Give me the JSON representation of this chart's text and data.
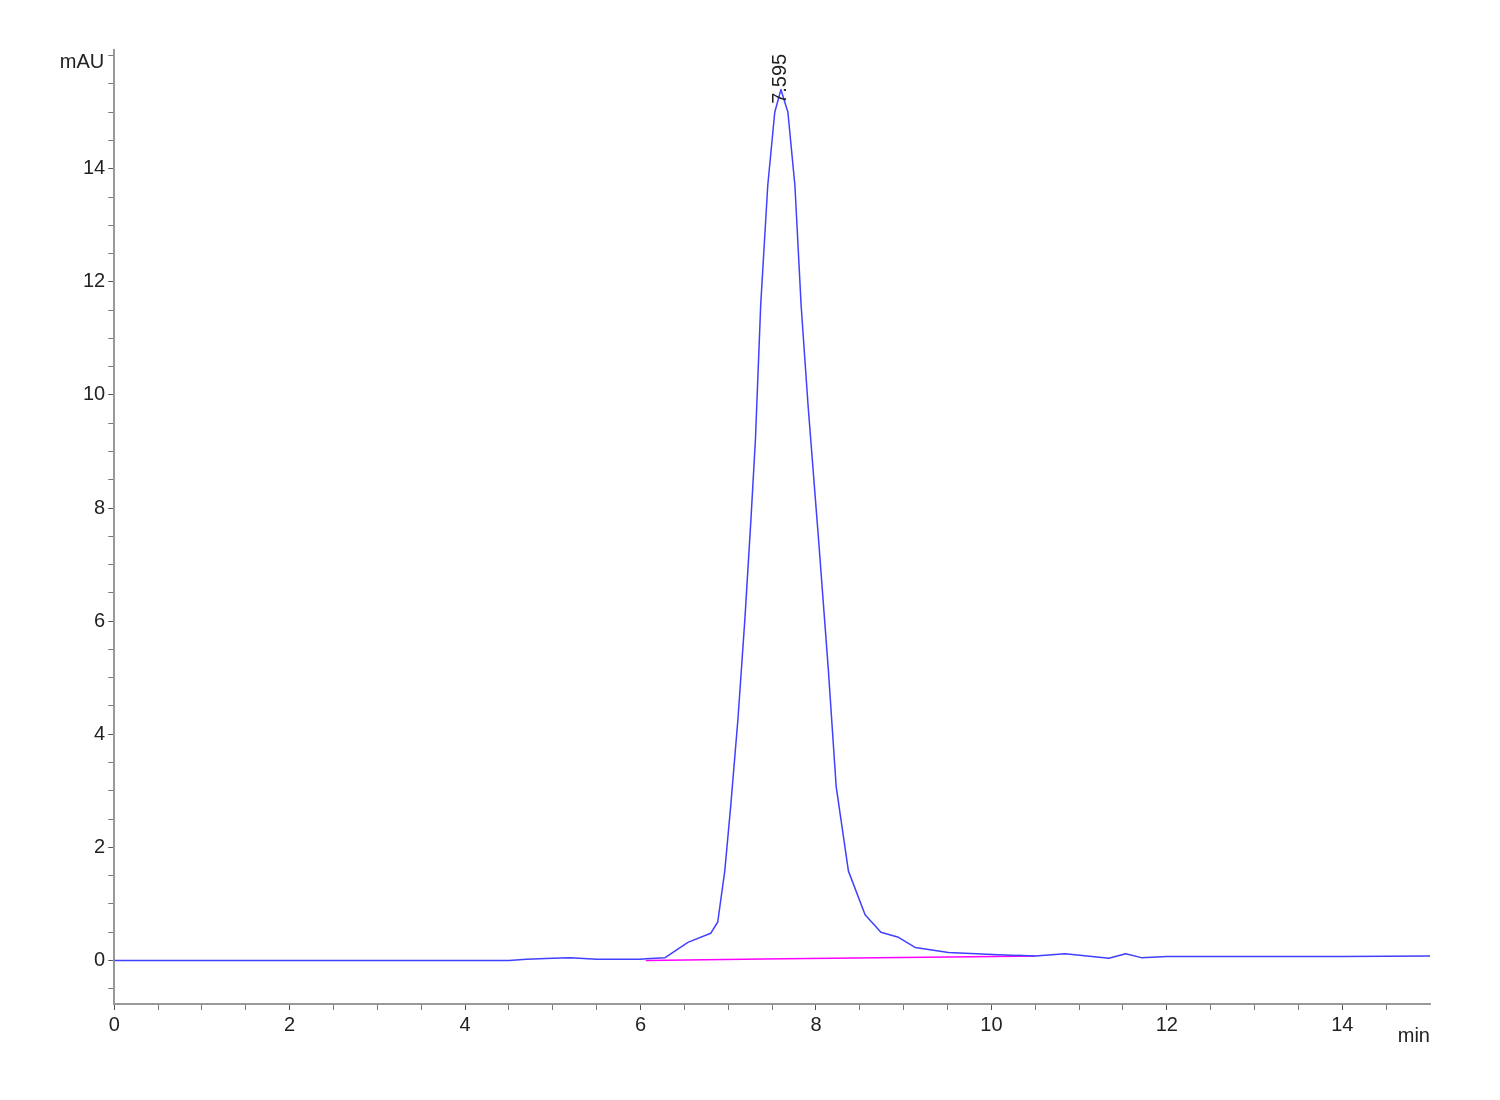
{
  "chart_data": {
    "type": "line",
    "xlabel": "min",
    "ylabel": "mAU",
    "xlim": [
      0,
      15
    ],
    "ylim": [
      -0.77,
      16.1
    ],
    "xticks": [
      0,
      {
        "value": 0.5,
        "label": null
      },
      2,
      {
        "value": 1,
        "label": null
      },
      {
        "value": 1.5,
        "label": null
      },
      {
        "value": 2.5,
        "label": null
      },
      {
        "value": 3,
        "label": null
      },
      {
        "value": 3.5,
        "label": null
      },
      4,
      {
        "value": 4.5,
        "label": null
      },
      {
        "value": 5,
        "label": null
      },
      {
        "value": 5.5,
        "label": null
      },
      6,
      {
        "value": 6.5,
        "label": null
      },
      {
        "value": 7,
        "label": null
      },
      {
        "value": 7.5,
        "label": null
      },
      8,
      {
        "value": 8.5,
        "label": null
      },
      {
        "value": 9,
        "label": null
      },
      {
        "value": 9.5,
        "label": null
      },
      10,
      {
        "value": 10.5,
        "label": null
      },
      {
        "value": 11,
        "label": null
      },
      {
        "value": 11.5,
        "label": null
      },
      12,
      {
        "value": 12.5,
        "label": null
      },
      {
        "value": 13,
        "label": null
      },
      {
        "value": 13.5,
        "label": null
      },
      14,
      {
        "value": 14.5,
        "label": null
      }
    ],
    "yticks": [
      {
        "value": -0.5,
        "label": null
      },
      0,
      {
        "value": 0.5,
        "label": null
      },
      {
        "value": 1,
        "label": null
      },
      {
        "value": 1.5,
        "label": null
      },
      2,
      {
        "value": 2.5,
        "label": null
      },
      {
        "value": 3,
        "label": null
      },
      {
        "value": 3.5,
        "label": null
      },
      4,
      {
        "value": 4.5,
        "label": null
      },
      {
        "value": 5,
        "label": null
      },
      {
        "value": 5.5,
        "label": null
      },
      6,
      {
        "value": 6.5,
        "label": null
      },
      {
        "value": 7,
        "label": null
      },
      {
        "value": 7.5,
        "label": null
      },
      8,
      {
        "value": 8.5,
        "label": null
      },
      {
        "value": 9,
        "label": null
      },
      {
        "value": 9.5,
        "label": null
      },
      10,
      {
        "value": 10.5,
        "label": null
      },
      {
        "value": 11,
        "label": null
      },
      {
        "value": 11.5,
        "label": null
      },
      12,
      {
        "value": 12.5,
        "label": null
      },
      {
        "value": 13,
        "label": null
      },
      {
        "value": 13.5,
        "label": null
      },
      14,
      {
        "value": 14.5,
        "label": null
      },
      {
        "value": 15,
        "label": null
      },
      {
        "value": 15.5,
        "label": null
      },
      {
        "value": 16,
        "label": null
      }
    ],
    "grid": false,
    "legend": false,
    "marker": "none",
    "line_style": "solid",
    "annotations": [
      {
        "text": "7.595",
        "x": 7.595,
        "y": 15.36
      }
    ],
    "series": [
      {
        "color": "#4040ff",
        "x": [
          0,
          1,
          2,
          3,
          4,
          4.5,
          4.7,
          5.0,
          5.2,
          5.5,
          6.0,
          6.06,
          6.28,
          6.54,
          6.8,
          6.88,
          6.96,
          7.03,
          7.11,
          7.19,
          7.26,
          7.31,
          7.37,
          7.45,
          7.53,
          7.6,
          7.68,
          7.76,
          7.83,
          7.91,
          8.03,
          8.14,
          8.23,
          8.37,
          8.56,
          8.74,
          8.94,
          9.13,
          9.51,
          10.08,
          10.5,
          10.84,
          11.34,
          11.53,
          11.71,
          12,
          13,
          14,
          15
        ],
        "values": [
          0,
          0,
          0,
          0,
          0,
          0,
          0.02,
          0.04,
          0.05,
          0.02,
          0.02,
          0.03,
          0.05,
          0.32,
          0.48,
          0.68,
          1.58,
          2.77,
          4.26,
          6.05,
          7.84,
          9.22,
          11.6,
          13.7,
          15.0,
          15.4,
          15.0,
          13.7,
          11.6,
          9.81,
          7.43,
          5.16,
          3.08,
          1.58,
          0.81,
          0.5,
          0.41,
          0.23,
          0.14,
          0.1,
          0.08,
          0.12,
          0.04,
          0.12,
          0.05,
          0.07,
          0.07,
          0.07,
          0.08
        ]
      },
      {
        "color": "#ff00ff",
        "x": [
          6.06,
          10.5
        ],
        "values": [
          0,
          0.08
        ]
      }
    ]
  }
}
